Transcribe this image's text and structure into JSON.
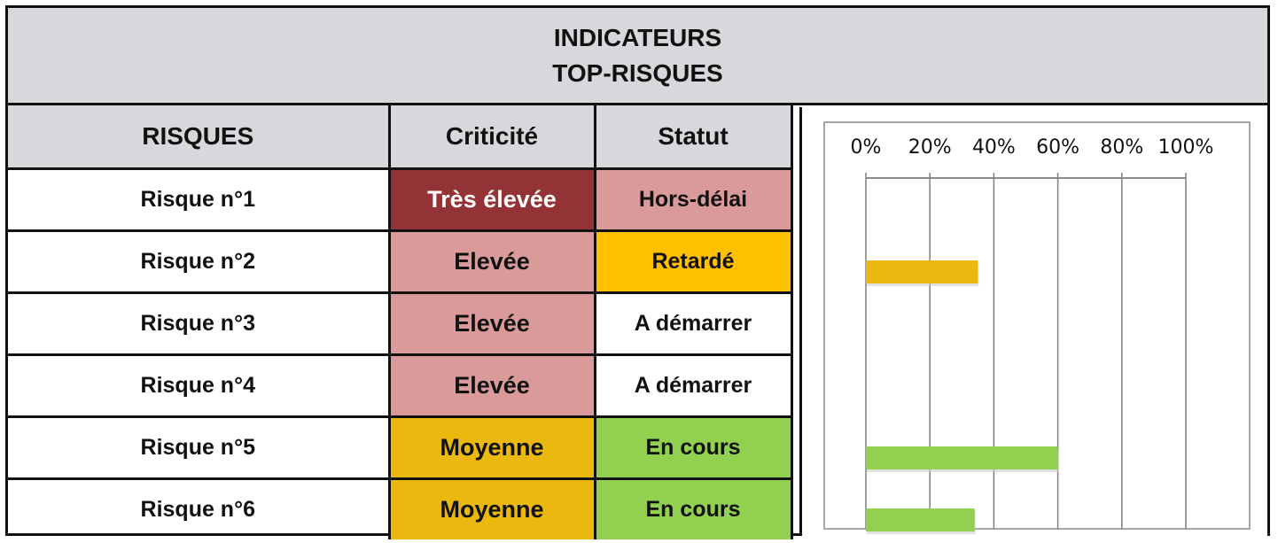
{
  "title": [
    "INDICATEURS",
    "TOP-RISQUES"
  ],
  "table": {
    "headers": [
      "RISQUES",
      "Criticité",
      "Statut"
    ],
    "rows": [
      {
        "risk": "Risque n°1",
        "criticality": "Très élevée",
        "status": "Hors-délai"
      },
      {
        "risk": "Risque n°2",
        "criticality": "Elevée",
        "status": "Retardé"
      },
      {
        "risk": "Risque n°3",
        "criticality": "Elevée",
        "status": "A démarrer"
      },
      {
        "risk": "Risque n°4",
        "criticality": "Elevée",
        "status": "A démarrer"
      },
      {
        "risk": "Risque n°5",
        "criticality": "Moyenne",
        "status": "En cours"
      },
      {
        "risk": "Risque n°6",
        "criticality": "Moyenne",
        "status": "En cours"
      }
    ]
  },
  "colors": {
    "header_bg": "#d9d7db",
    "criticality": {
      "Très élevée": "#943335",
      "Elevée": "#db9a9a",
      "Moyenne": "#ebb80f"
    },
    "criticality_text": {
      "Très élevée": "#ffffff",
      "Elevée": "#111111",
      "Moyenne": "#111111"
    },
    "status": {
      "Hors-délai": "#db9a9a",
      "Retardé": "#ffc000",
      "A démarrer": "#ffffff",
      "En cours": "#92d050"
    },
    "bar_orange": "#ebb80f",
    "bar_green": "#92d050"
  },
  "chart_data": {
    "type": "bar",
    "orientation": "horizontal",
    "categories": [
      "Risque n°1",
      "Risque n°2",
      "Risque n°3",
      "Risque n°4",
      "Risque n°5",
      "Risque n°6"
    ],
    "values": [
      0,
      35,
      0,
      0,
      60,
      34
    ],
    "bar_colors": [
      "#ebb80f",
      "#ebb80f",
      "#ebb80f",
      "#ebb80f",
      "#92d050",
      "#92d050"
    ],
    "xlim": [
      0,
      100
    ],
    "xticks": [
      "0%",
      "20%",
      "40%",
      "60%",
      "80%",
      "100%"
    ],
    "grid": true,
    "axis_position": "top"
  }
}
